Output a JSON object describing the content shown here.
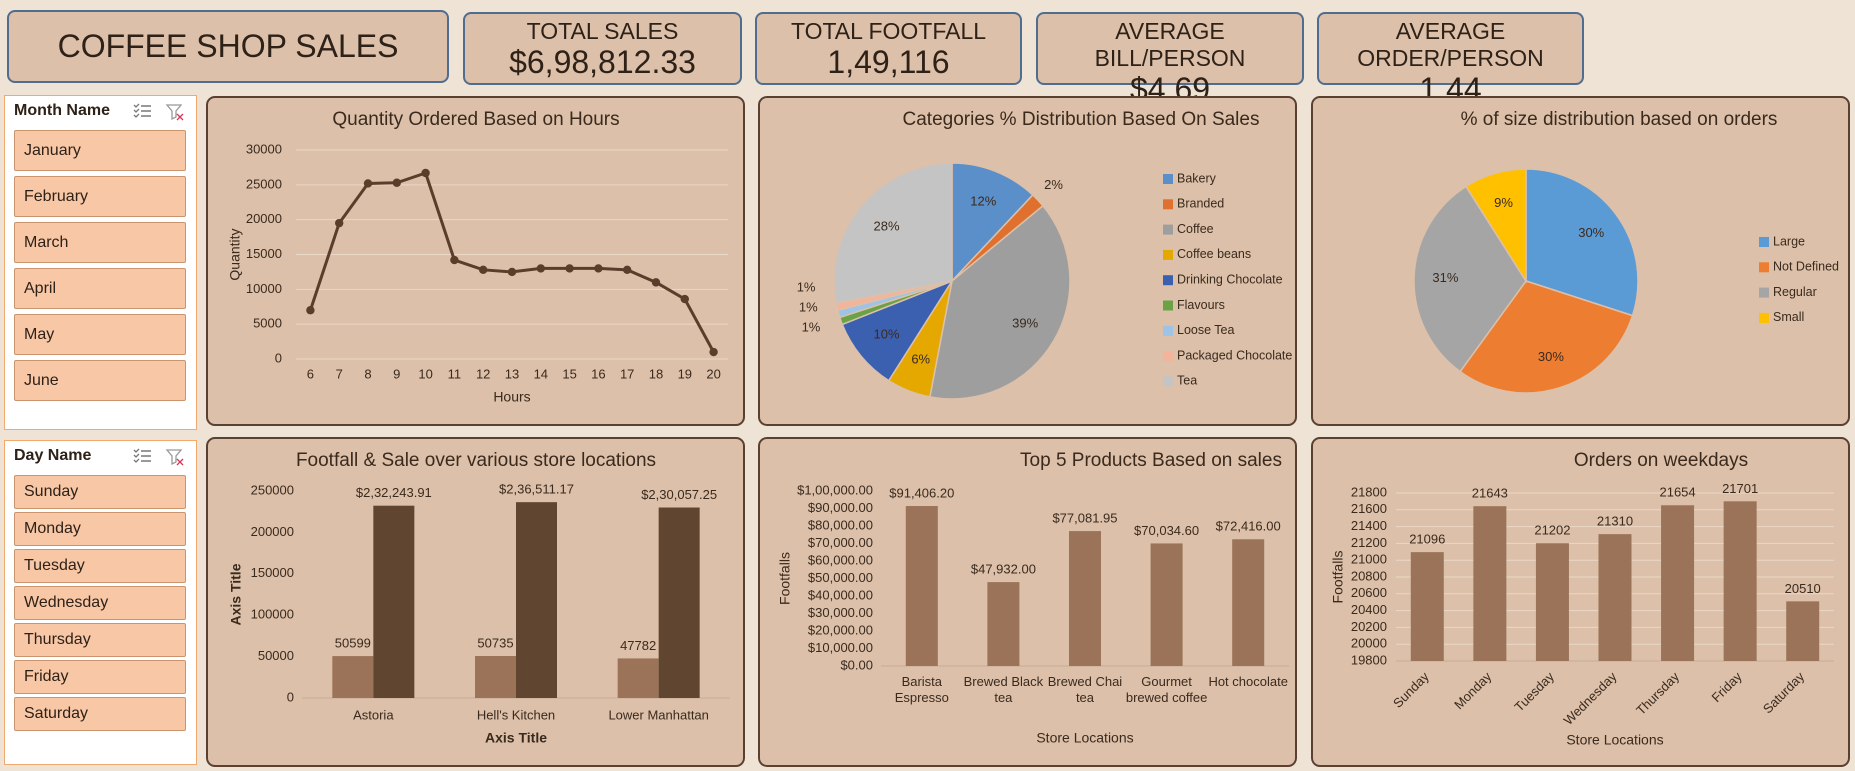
{
  "title": "COFFEE SHOP SALES",
  "kpis": [
    {
      "label": "TOTAL SALES",
      "value": "$6,98,812.33"
    },
    {
      "label": "TOTAL FOOTFALL",
      "value": "1,49,116"
    },
    {
      "label": "AVERAGE BILL/PERSON",
      "value": "$4.69"
    },
    {
      "label": "AVERAGE ORDER/PERSON",
      "value": "1.44"
    }
  ],
  "slicers": [
    {
      "title": "Month Name",
      "items": [
        "January",
        "February",
        "March",
        "April",
        "May",
        "June"
      ]
    },
    {
      "title": "Day Name",
      "items": [
        "Sunday",
        "Monday",
        "Tuesday",
        "Wednesday",
        "Thursday",
        "Friday",
        "Saturday"
      ]
    }
  ],
  "chart_data": [
    {
      "type": "line",
      "title": "Quantity Ordered Based on Hours",
      "x_label": "Hours",
      "y_label": "Quantity",
      "x": [
        6,
        7,
        8,
        9,
        10,
        11,
        12,
        13,
        14,
        15,
        16,
        17,
        18,
        19,
        20
      ],
      "values": [
        7000,
        19500,
        25200,
        25300,
        26700,
        14200,
        12800,
        12500,
        13000,
        13000,
        13000,
        12800,
        11000,
        8600,
        1000
      ],
      "color": "#5a3d2b",
      "xlim": [
        5.5,
        20.5
      ],
      "xticks": [
        6,
        7,
        8,
        9,
        10,
        11,
        12,
        13,
        14,
        15,
        16,
        17,
        18,
        19,
        20
      ],
      "ylim": [
        0,
        30000
      ],
      "yticks": [
        0,
        5000,
        10000,
        15000,
        20000,
        25000,
        30000
      ],
      "grid": true
    },
    {
      "type": "pie",
      "title": "Categories % Distribution Based On Sales",
      "categories": [
        "Bakery",
        "Branded",
        "Coffee",
        "Coffee beans",
        "Drinking Chocolate",
        "Flavours",
        "Loose Tea",
        "Packaged Chocolate",
        "Tea"
      ],
      "values": [
        12,
        2,
        39,
        6,
        10,
        1,
        1,
        1,
        28
      ],
      "value_labels": [
        "12%",
        "2%",
        "39%",
        "6%",
        "10%",
        "1%",
        "1%",
        "1%",
        "28%"
      ],
      "colors": [
        "#5b8fc9",
        "#e0702d",
        "#9e9e9e",
        "#e5a800",
        "#3c60b0",
        "#6aa346",
        "#9dc3e6",
        "#f2b49a",
        "#c4c4c4"
      ],
      "legend": "right"
    },
    {
      "type": "pie",
      "title": "% of size distribution based on orders",
      "categories": [
        "Large",
        "Not Defined",
        "Regular",
        "Small"
      ],
      "values": [
        30,
        30,
        31,
        9
      ],
      "value_labels": [
        "30%",
        "30%",
        "31%",
        "9%"
      ],
      "colors": [
        "#5b9bd5",
        "#ed7d31",
        "#a5a5a5",
        "#ffc000"
      ],
      "legend": "right"
    },
    {
      "type": "bar",
      "title": "Footfall & Sale over various store locations",
      "x_label": "Axis Title",
      "y_label": "Axis Title",
      "categories": [
        "Astoria",
        "Hell's Kitchen",
        "Lower Manhattan"
      ],
      "series": [
        {
          "color": "#9a7358",
          "values": [
            50599,
            50735,
            47782
          ]
        },
        {
          "color": "#604530",
          "values": [
            232243.91,
            236511.17,
            230057.25
          ],
          "value_labels": [
            "$2,32,243.91",
            "$2,36,511.17",
            "$2,30,057.25"
          ]
        }
      ],
      "ylim": [
        0,
        250000
      ],
      "yticks": [
        0,
        50000,
        100000,
        150000,
        200000,
        250000
      ],
      "grid": false
    },
    {
      "type": "bar",
      "title": "Top 5 Products Based on sales",
      "x_label": "Store Locations",
      "y_label": "Footfalls",
      "categories": [
        "Barista Espresso",
        "Brewed Black tea",
        "Brewed Chai tea",
        "Gourmet brewed coffee",
        "Hot chocolate"
      ],
      "values": [
        91406.2,
        47932.0,
        77081.95,
        70034.6,
        72416.0
      ],
      "value_labels": [
        "$91,406.20",
        "$47,932.00",
        "$77,081.95",
        "$70,034.60",
        "$72,416.00"
      ],
      "color": "#9a7358",
      "ylim": [
        0,
        100000
      ],
      "yticks": [
        {
          "value": 0,
          "label": "$0.00"
        },
        {
          "value": 10000,
          "label": "$10,000.00"
        },
        {
          "value": 20000,
          "label": "$20,000.00"
        },
        {
          "value": 30000,
          "label": "$30,000.00"
        },
        {
          "value": 40000,
          "label": "$40,000.00"
        },
        {
          "value": 50000,
          "label": "$50,000.00"
        },
        {
          "value": 60000,
          "label": "$60,000.00"
        },
        {
          "value": 70000,
          "label": "$70,000.00"
        },
        {
          "value": 80000,
          "label": "$80,000.00"
        },
        {
          "value": 90000,
          "label": "$90,000.00"
        },
        {
          "value": 100000,
          "label": "$1,00,000.00"
        }
      ],
      "grid": false
    },
    {
      "type": "bar",
      "title": "Orders on weekdays",
      "x_label": "Store Locations",
      "y_label": "Footfalls",
      "categories": [
        "Sunday",
        "Monday",
        "Tuesday",
        "Wednesday",
        "Thursday",
        "Friday",
        "Saturday"
      ],
      "values": [
        21096,
        21643,
        21202,
        21310,
        21654,
        21701,
        20510
      ],
      "color": "#9a7358",
      "ylim": [
        19800,
        21800
      ],
      "yticks": [
        19800,
        20000,
        20200,
        20400,
        20600,
        20800,
        21000,
        21200,
        21400,
        21600,
        21800
      ],
      "grid": true,
      "xtick_rotation": -45
    }
  ]
}
